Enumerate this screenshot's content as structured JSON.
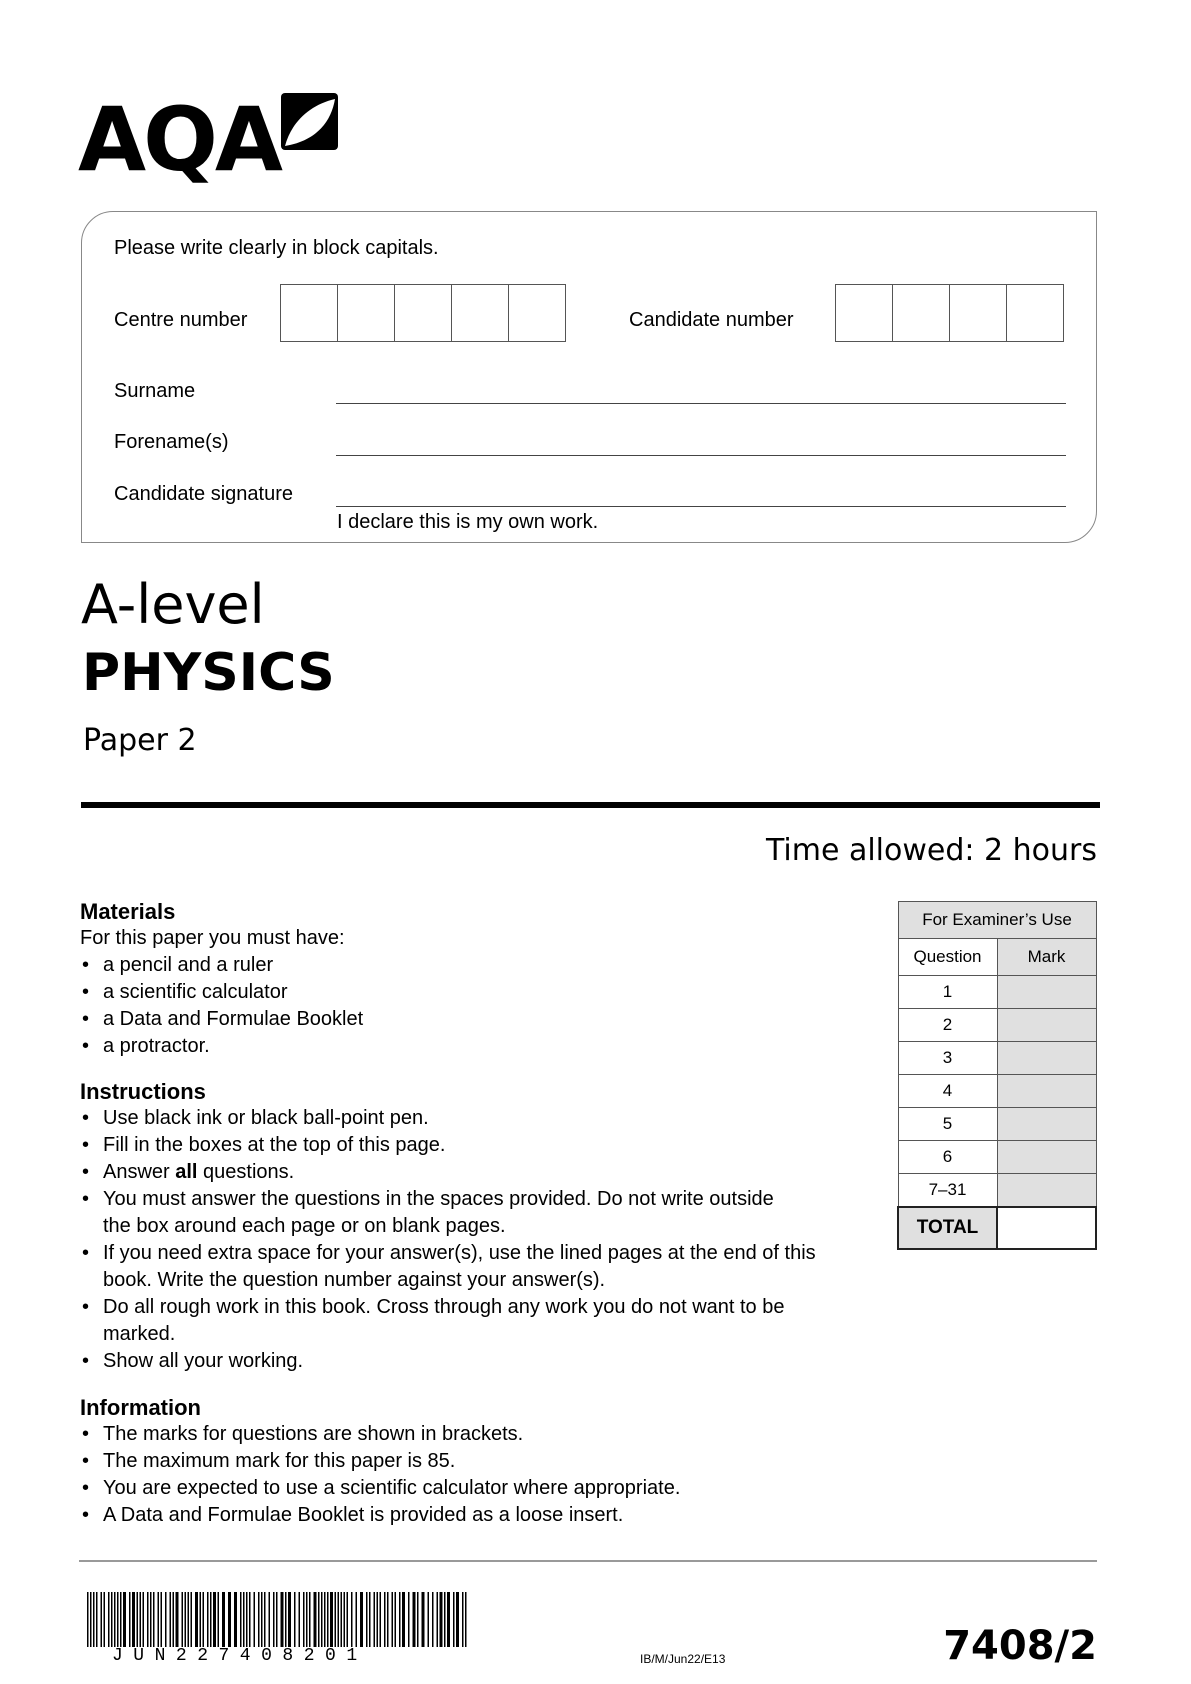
{
  "logo": {
    "text": "AQA",
    "icon": "leaf-square-icon"
  },
  "form": {
    "instruction": "Please write clearly in block capitals.",
    "centre_number_label": "Centre number",
    "candidate_number_label": "Candidate number",
    "surname_label": "Surname",
    "forenames_label": "Forename(s)",
    "signature_label": "Candidate signature",
    "declaration": "I declare this is my own work."
  },
  "title": {
    "level": "A-level",
    "subject": "PHYSICS",
    "paper": "Paper 2"
  },
  "time_allowed": "Time allowed: 2 hours",
  "materials": {
    "heading": "Materials",
    "intro": "For this paper you must have:",
    "items": [
      "a pencil and a ruler",
      "a scientific calculator",
      "a Data and Formulae Booklet",
      "a protractor."
    ]
  },
  "instructions": {
    "heading": "Instructions",
    "items": [
      "Use black ink or black ball-point pen.",
      "Fill in the boxes at the top of this page.",
      "Answer ",
      "You must answer the questions in the spaces provided.  Do not write outside the box around each page or on blank pages.",
      "If you need extra space for your answer(s), use the lined pages at the end of this book.  Write the question number against your answer(s).",
      "Do all rough work in this book.  Cross through any work you do not want to be marked.",
      "Show all your working."
    ],
    "answer_bold": "all",
    "answer_tail": " questions."
  },
  "information": {
    "heading": "Information",
    "items": [
      "The marks for questions are shown in brackets.",
      "The maximum mark for this paper is 85.",
      "You are expected to use a scientific calculator where appropriate.",
      "A Data and Formulae Booklet is provided as a loose insert."
    ]
  },
  "examiner_table": {
    "title": "For Examiner’s Use",
    "col_question": "Question",
    "col_mark": "Mark",
    "rows": [
      "1",
      "2",
      "3",
      "4",
      "5",
      "6",
      "7–31"
    ],
    "total_label": "TOTAL"
  },
  "footer": {
    "barcode_text": "JUN227408201",
    "reference": "IB/M/Jun22/E13",
    "paper_code": "7408/2"
  }
}
